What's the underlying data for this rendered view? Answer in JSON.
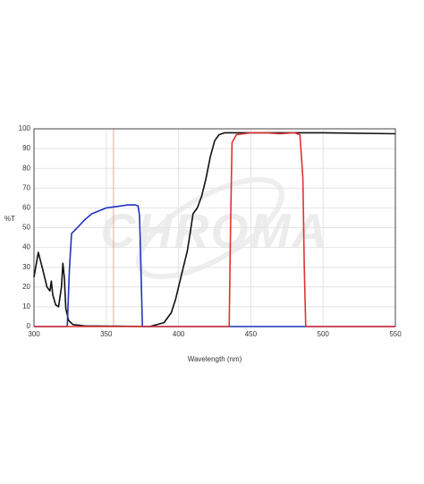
{
  "chart_data": {
    "type": "line",
    "xlabel": "Wavelength (nm)",
    "ylabel": "%T",
    "watermark": "CHROMA",
    "xlim": [
      300,
      550
    ],
    "xticks": [
      300,
      350,
      400,
      450,
      500,
      550
    ],
    "ylim": [
      0,
      100
    ],
    "yticks": [
      0,
      10,
      20,
      30,
      40,
      50,
      60,
      70,
      80,
      90,
      100
    ],
    "grid": true,
    "reference_line": {
      "x": 355,
      "color": "#e0a8a0"
    },
    "series": [
      {
        "color": "#111111",
        "x": [
          300,
          303,
          306,
          309,
          311,
          312,
          313,
          315,
          317,
          319,
          320,
          321,
          322,
          324,
          327,
          335,
          380,
          390,
          395,
          398,
          400,
          403,
          406,
          408,
          410,
          413,
          416,
          419,
          422,
          425,
          428,
          432,
          450,
          500,
          550
        ],
        "values": [
          25,
          37.5,
          29,
          20,
          18,
          23,
          16,
          11,
          10,
          20,
          32,
          25,
          9,
          3,
          1,
          0.3,
          0,
          2,
          7,
          14,
          20,
          29,
          38,
          47,
          57,
          60,
          66,
          75,
          86,
          94,
          97,
          98,
          98,
          98,
          97.5
        ]
      },
      {
        "color": "#2233bb",
        "x": [
          300,
          323,
          324.5,
          326,
          330,
          335,
          340,
          350,
          360,
          365,
          370,
          372,
          373,
          374,
          375,
          550
        ],
        "values": [
          0,
          0,
          29,
          47,
          50,
          54,
          57,
          60,
          61,
          61.5,
          61.5,
          61,
          56,
          29,
          0,
          0
        ]
      },
      {
        "color": "#dd3333",
        "x": [
          300,
          435,
          436,
          437,
          440,
          450,
          460,
          470,
          480,
          484,
          486,
          487,
          488,
          550
        ],
        "values": [
          0,
          0,
          52,
          93,
          97,
          98,
          98,
          97.5,
          98,
          97,
          75,
          29,
          0,
          0
        ]
      }
    ]
  }
}
